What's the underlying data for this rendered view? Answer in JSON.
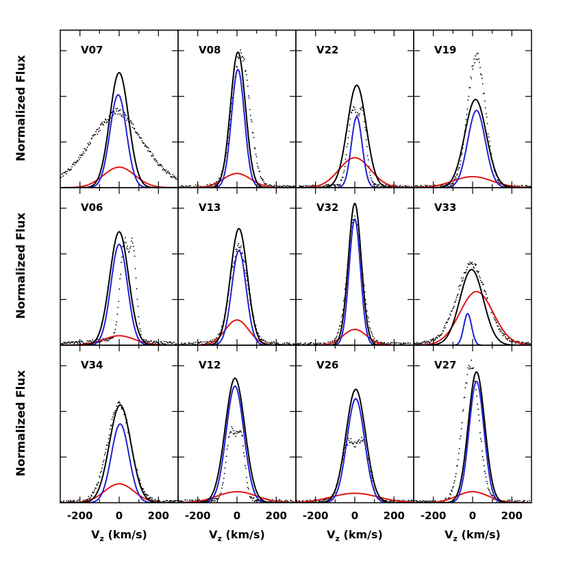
{
  "figure": {
    "ylabel": "Normalized Flux",
    "xlabel_main": "V",
    "xlabel_sub": "z",
    "xlabel_units": " (km/s)",
    "x_ticks": [
      "-200",
      "0",
      "200"
    ],
    "colors": {
      "total": "#000000",
      "narrow": "#1f1fd6",
      "broad": "#e01414",
      "data": "#000000"
    }
  },
  "chart_data": [
    {
      "type": "line",
      "name": "V07",
      "xlim": [
        -300,
        300
      ],
      "ylim": [
        0,
        1
      ],
      "series": [
        {
          "kind": "total",
          "center": 0,
          "sigma": 48,
          "amp": 0.73
        },
        {
          "kind": "narrow",
          "center": -5,
          "sigma": 42,
          "amp": 0.59
        },
        {
          "kind": "broad",
          "center": 0,
          "sigma": 80,
          "amp": 0.13
        }
      ],
      "obs": {
        "shape": "broad",
        "shift": -15,
        "width": 140,
        "amp": 0.37,
        "wing": 0.12
      }
    },
    {
      "type": "line",
      "name": "V08",
      "xlim": [
        -300,
        300
      ],
      "ylim": [
        0,
        1
      ],
      "series": [
        {
          "kind": "total",
          "center": 5,
          "sigma": 38,
          "amp": 0.86
        },
        {
          "kind": "narrow",
          "center": 5,
          "sigma": 33,
          "amp": 0.75
        },
        {
          "kind": "broad",
          "center": 0,
          "sigma": 70,
          "amp": 0.09
        }
      ],
      "obs": {
        "shape": "narrow",
        "shift": 20,
        "width": 45,
        "amp": 0.84,
        "wing": 0.02
      }
    },
    {
      "type": "line",
      "name": "V22",
      "xlim": [
        -300,
        300
      ],
      "ylim": [
        0,
        1
      ],
      "series": [
        {
          "kind": "total",
          "center": 10,
          "sigma": 48,
          "amp": 0.65
        },
        {
          "kind": "narrow",
          "center": 10,
          "sigma": 28,
          "amp": 0.45
        },
        {
          "kind": "broad",
          "center": 0,
          "sigma": 80,
          "amp": 0.19
        }
      ],
      "obs": {
        "shape": "double",
        "shift": 10,
        "width": 40,
        "amp": 0.62,
        "wing": 0.02
      }
    },
    {
      "type": "line",
      "name": "V19",
      "xlim": [
        -300,
        300
      ],
      "ylim": [
        0,
        1
      ],
      "series": [
        {
          "kind": "total",
          "center": 15,
          "sigma": 55,
          "amp": 0.56
        },
        {
          "kind": "narrow",
          "center": 20,
          "sigma": 45,
          "amp": 0.49
        },
        {
          "kind": "broad",
          "center": 0,
          "sigma": 100,
          "amp": 0.07
        }
      ],
      "obs": {
        "shape": "narrow",
        "shift": 20,
        "width": 45,
        "amp": 0.82,
        "wing": 0.02
      }
    },
    {
      "type": "line",
      "name": "V06",
      "xlim": [
        -300,
        300
      ],
      "ylim": [
        0,
        1
      ],
      "series": [
        {
          "kind": "total",
          "center": 0,
          "sigma": 48,
          "amp": 0.72
        },
        {
          "kind": "narrow",
          "center": 0,
          "sigma": 42,
          "amp": 0.64
        },
        {
          "kind": "broad",
          "center": 0,
          "sigma": 80,
          "amp": 0.06
        }
      ],
      "obs": {
        "shape": "double",
        "shift": 45,
        "width": 35,
        "amp": 0.8,
        "wing": 0.05
      }
    },
    {
      "type": "line",
      "name": "V13",
      "xlim": [
        -300,
        300
      ],
      "ylim": [
        0,
        1
      ],
      "series": [
        {
          "kind": "total",
          "center": 10,
          "sigma": 43,
          "amp": 0.74
        },
        {
          "kind": "narrow",
          "center": 10,
          "sigma": 37,
          "amp": 0.6
        },
        {
          "kind": "broad",
          "center": 0,
          "sigma": 60,
          "amp": 0.16
        }
      ],
      "obs": {
        "shape": "narrow",
        "shift": 10,
        "width": 45,
        "amp": 0.6,
        "wing": 0.03
      }
    },
    {
      "type": "line",
      "name": "V32",
      "xlim": [
        -300,
        300
      ],
      "ylim": [
        0,
        1
      ],
      "series": [
        {
          "kind": "total",
          "center": 0,
          "sigma": 33,
          "amp": 0.9
        },
        {
          "kind": "narrow",
          "center": 0,
          "sigma": 29,
          "amp": 0.8
        },
        {
          "kind": "broad",
          "center": 0,
          "sigma": 60,
          "amp": 0.1
        }
      ],
      "obs": {
        "shape": "narrow",
        "shift": 0,
        "width": 38,
        "amp": 0.78,
        "wing": 0.02
      }
    },
    {
      "type": "line",
      "name": "V33",
      "xlim": [
        -300,
        300
      ],
      "ylim": [
        0,
        1
      ],
      "series": [
        {
          "kind": "total",
          "center": -5,
          "sigma": 60,
          "amp": 0.48
        },
        {
          "kind": "narrow",
          "center": -25,
          "sigma": 20,
          "amp": 0.2
        },
        {
          "kind": "broad",
          "center": 20,
          "sigma": 85,
          "amp": 0.34
        }
      ],
      "obs": {
        "shape": "broad",
        "shift": -5,
        "width": 75,
        "amp": 0.47,
        "wing": 0.05
      }
    },
    {
      "type": "line",
      "name": "V34",
      "xlim": [
        -300,
        300
      ],
      "ylim": [
        0,
        1
      ],
      "series": [
        {
          "kind": "total",
          "center": 5,
          "sigma": 55,
          "amp": 0.62
        },
        {
          "kind": "narrow",
          "center": 5,
          "sigma": 45,
          "amp": 0.5
        },
        {
          "kind": "broad",
          "center": 0,
          "sigma": 75,
          "amp": 0.12
        }
      ],
      "obs": {
        "shape": "narrow",
        "shift": 0,
        "width": 60,
        "amp": 0.6,
        "wing": 0.02
      }
    },
    {
      "type": "line",
      "name": "V12",
      "xlim": [
        -300,
        300
      ],
      "ylim": [
        0,
        1
      ],
      "series": [
        {
          "kind": "total",
          "center": -10,
          "sigma": 50,
          "amp": 0.79
        },
        {
          "kind": "narrow",
          "center": -10,
          "sigma": 45,
          "amp": 0.74
        },
        {
          "kind": "broad",
          "center": 0,
          "sigma": 100,
          "amp": 0.07
        }
      ],
      "obs": {
        "shape": "double",
        "shift": -10,
        "width": 40,
        "amp": 0.56,
        "wing": 0.03
      }
    },
    {
      "type": "line",
      "name": "V26",
      "xlim": [
        -300,
        300
      ],
      "ylim": [
        0,
        1
      ],
      "series": [
        {
          "kind": "total",
          "center": 5,
          "sigma": 50,
          "amp": 0.72
        },
        {
          "kind": "narrow",
          "center": 5,
          "sigma": 45,
          "amp": 0.66
        },
        {
          "kind": "broad",
          "center": 0,
          "sigma": 120,
          "amp": 0.06
        }
      ],
      "obs": {
        "shape": "double",
        "shift": 0,
        "width": 60,
        "amp": 0.47,
        "wing": 0.03
      }
    },
    {
      "type": "line",
      "name": "V27",
      "xlim": [
        -300,
        300
      ],
      "ylim": [
        0,
        1
      ],
      "series": [
        {
          "kind": "total",
          "center": 20,
          "sigma": 42,
          "amp": 0.83
        },
        {
          "kind": "narrow",
          "center": 20,
          "sigma": 38,
          "amp": 0.77
        },
        {
          "kind": "broad",
          "center": 0,
          "sigma": 80,
          "amp": 0.07
        }
      ],
      "obs": {
        "shape": "narrow",
        "shift": -10,
        "width": 42,
        "amp": 0.86,
        "wing": 0.02
      }
    }
  ]
}
